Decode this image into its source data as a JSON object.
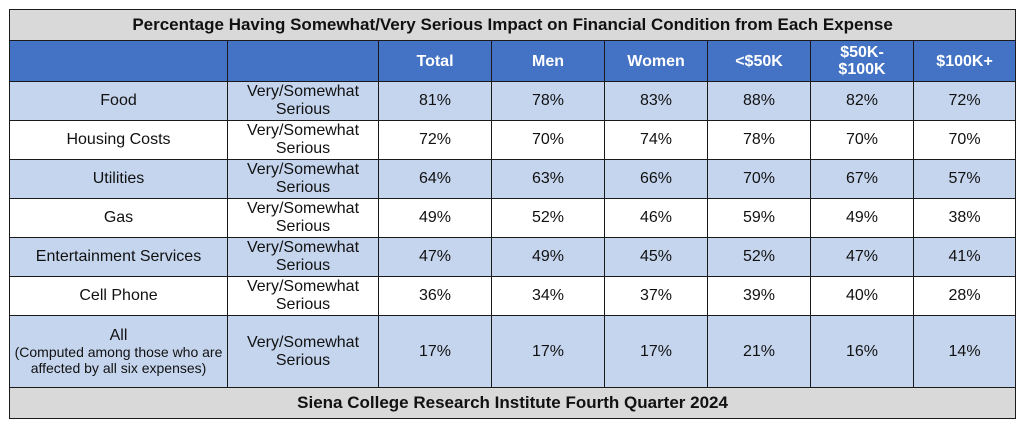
{
  "title": "Percentage Having Somewhat/Very Serious Impact on Financial Condition from Each Expense",
  "columns": [
    "Total",
    "Men",
    "Women",
    "<$50K",
    "$50K-\n$100K",
    "$100K+"
  ],
  "footer": "Siena College Research Institute Fourth Quarter 2024",
  "colors": {
    "header_blue": "#4472c4",
    "band_blue": "#c5d5ee",
    "title_gray": "#d9d9d9"
  },
  "chart_data": {
    "type": "table",
    "title": "Percentage Having Somewhat/Very Serious Impact on Financial Condition from Each Expense",
    "columns": [
      "Total",
      "Men",
      "Women",
      "<$50K",
      "$50K-$100K",
      "$100K+"
    ],
    "rows": [
      {
        "label": "Food",
        "sublabel": "",
        "response": "Very/Somewhat Serious",
        "values": [
          "81%",
          "78%",
          "83%",
          "88%",
          "82%",
          "72%"
        ]
      },
      {
        "label": "Housing Costs",
        "sublabel": "",
        "response": "Very/Somewhat Serious",
        "values": [
          "72%",
          "70%",
          "74%",
          "78%",
          "70%",
          "70%"
        ]
      },
      {
        "label": "Utilities",
        "sublabel": "",
        "response": "Very/Somewhat Serious",
        "values": [
          "64%",
          "63%",
          "66%",
          "70%",
          "67%",
          "57%"
        ]
      },
      {
        "label": "Gas",
        "sublabel": "",
        "response": "Very/Somewhat Serious",
        "values": [
          "49%",
          "52%",
          "46%",
          "59%",
          "49%",
          "38%"
        ]
      },
      {
        "label": "Entertainment Services",
        "sublabel": "",
        "response": "Very/Somewhat Serious",
        "values": [
          "47%",
          "49%",
          "45%",
          "52%",
          "47%",
          "41%"
        ]
      },
      {
        "label": "Cell Phone",
        "sublabel": "",
        "response": "Very/Somewhat Serious",
        "values": [
          "36%",
          "34%",
          "37%",
          "39%",
          "40%",
          "28%"
        ]
      },
      {
        "label": "All",
        "sublabel": "(Computed among those who are affected by all six expenses)",
        "response": "Very/Somewhat Serious",
        "values": [
          "17%",
          "17%",
          "17%",
          "21%",
          "16%",
          "14%"
        ]
      }
    ],
    "footer": "Siena College Research Institute Fourth Quarter 2024"
  }
}
